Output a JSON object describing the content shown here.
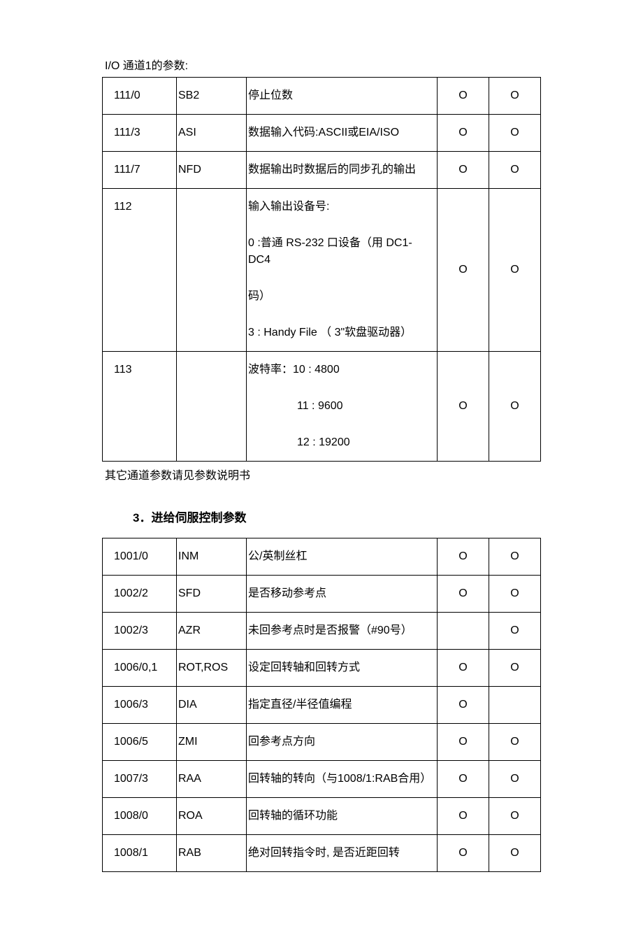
{
  "table1": {
    "caption": "I/O 通道1的参数:",
    "footnote": "其它通道参数请见参数说明书",
    "rows": [
      {
        "c1": "111/0",
        "c2": "SB2",
        "c3": [
          "停止位数"
        ],
        "c4": "O",
        "c5": "O"
      },
      {
        "c1": "111/3",
        "c2": "ASI",
        "c3": [
          "数据输入代码:ASCII或EIA/ISO"
        ],
        "c4": "O",
        "c5": "O"
      },
      {
        "c1": "111/7",
        "c2": "NFD",
        "c3": [
          "数据输出时数据后的同步孔的输出"
        ],
        "c4": "O",
        "c5": "O"
      },
      {
        "c1": "112",
        "c2": "",
        "c3": [
          "输入输出设备号:",
          "0 :普通 RS-232 口设备（用 DC1-DC4",
          "码）",
          "3 : Handy File （ 3\"软盘驱动器）"
        ],
        "c4": "O",
        "c5": "O"
      },
      {
        "c1": "113",
        "c2": "",
        "c3": [
          "波特率：10 : 4800",
          "11 : 9600",
          "12 : 19200"
        ],
        "indent": [
          false,
          true,
          true
        ],
        "c4": "O",
        "c5": "O"
      }
    ]
  },
  "section2_heading": "3．进给伺服控制参数",
  "table2": {
    "rows": [
      {
        "c1": "1001/0",
        "c2": "INM",
        "c3": "公/英制丝杠",
        "c4": "O",
        "c5": "O"
      },
      {
        "c1": "1002/2",
        "c2": "SFD",
        "c3": "是否移动参考点",
        "c4": "O",
        "c5": "O"
      },
      {
        "c1": "1002/3",
        "c2": "AZR",
        "c3": "未回参考点时是否报警（#90号）",
        "c4": "",
        "c5": "O"
      },
      {
        "c1": "1006/0,1",
        "c2": "ROT,ROS",
        "c3": "设定回转轴和回转方式",
        "c4": "O",
        "c5": "O"
      },
      {
        "c1": "1006/3",
        "c2": "DIA",
        "c3": "指定直径/半径值编程",
        "c4": "O",
        "c5": ""
      },
      {
        "c1": "1006/5",
        "c2": "ZMI",
        "c3": "回参考点方向",
        "c4": "O",
        "c5": "O"
      },
      {
        "c1": "1007/3",
        "c2": "RAA",
        "c3": "回转轴的转向（与1008/1:RAB合用）",
        "c4": "O",
        "c5": "O"
      },
      {
        "c1": "1008/0",
        "c2": "ROA",
        "c3": "回转轴的循环功能",
        "c4": "O",
        "c5": "O"
      },
      {
        "c1": "1008/1",
        "c2": "RAB",
        "c3": "绝对回转指令时, 是否近距回转",
        "c4": "O",
        "c5": "O"
      }
    ]
  }
}
